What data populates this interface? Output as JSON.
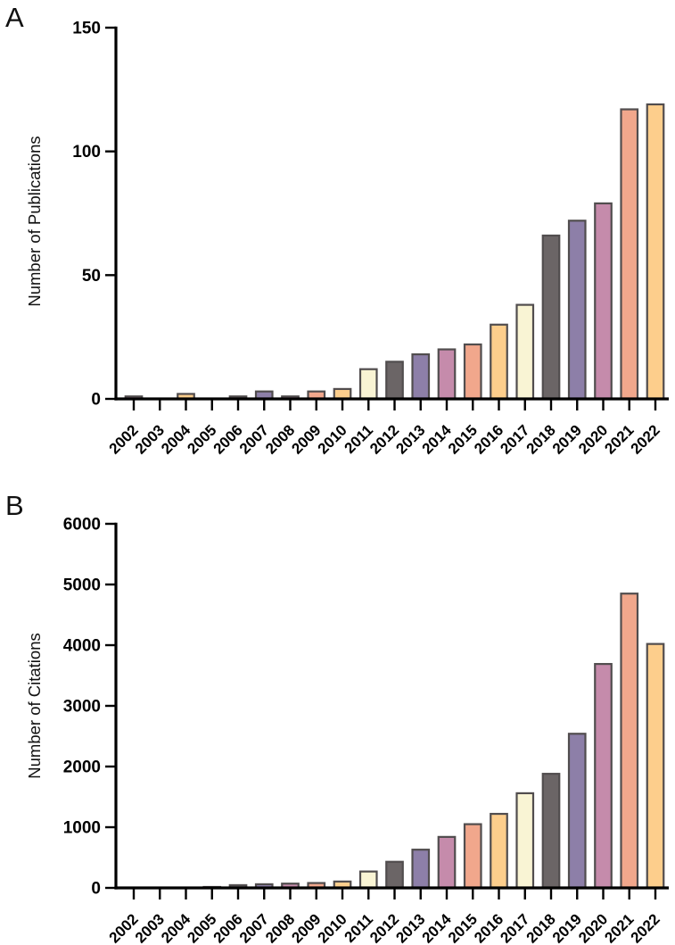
{
  "figure": {
    "background": "#FFFFFF",
    "axis_color": "#000000",
    "bar_border_color": "#514D4E",
    "palette": [
      "#C58BAB",
      "#F1A78C",
      "#FDCE8C",
      "#F9F4D4",
      "#6B6566",
      "#8D7FA8"
    ],
    "palette_rule": "bar color = palette[yearIndex % 6], where 2002 has index 0",
    "panels": [
      {
        "label": "A"
      },
      {
        "label": "B"
      }
    ]
  },
  "chart_data": [
    {
      "type": "bar",
      "panel": "A",
      "title": "",
      "xlabel": "",
      "ylabel": "Number of Publications",
      "categories": [
        "2002",
        "2003",
        "2004",
        "2005",
        "2006",
        "2007",
        "2008",
        "2009",
        "2010",
        "2011",
        "2012",
        "2013",
        "2014",
        "2015",
        "2016",
        "2017",
        "2018",
        "2019",
        "2020",
        "2021",
        "2022"
      ],
      "values": [
        1,
        0,
        2,
        0,
        1,
        3,
        1,
        3,
        4,
        12,
        15,
        18,
        20,
        22,
        30,
        38,
        66,
        72,
        79,
        117,
        119
      ],
      "ylim": [
        0,
        150
      ],
      "ytick_step": 50,
      "yticks": [
        0,
        50,
        100,
        150
      ],
      "grid": false,
      "legend": false,
      "x_tick_label_rotation_deg": -45
    },
    {
      "type": "bar",
      "panel": "B",
      "title": "",
      "xlabel": "",
      "ylabel": "Number of Citations",
      "categories": [
        "2002",
        "2003",
        "2004",
        "2005",
        "2006",
        "2007",
        "2008",
        "2009",
        "2010",
        "2011",
        "2012",
        "2013",
        "2014",
        "2015",
        "2016",
        "2017",
        "2018",
        "2019",
        "2020",
        "2021",
        "2022"
      ],
      "values": [
        0,
        0,
        5,
        15,
        45,
        60,
        70,
        80,
        105,
        270,
        430,
        630,
        840,
        1050,
        1220,
        1560,
        1880,
        2540,
        3690,
        4850,
        4020
      ],
      "ylim": [
        0,
        6000
      ],
      "ytick_step": 1000,
      "yticks": [
        0,
        1000,
        2000,
        3000,
        4000,
        5000,
        6000
      ],
      "grid": false,
      "legend": false,
      "x_tick_label_rotation_deg": -45
    }
  ]
}
